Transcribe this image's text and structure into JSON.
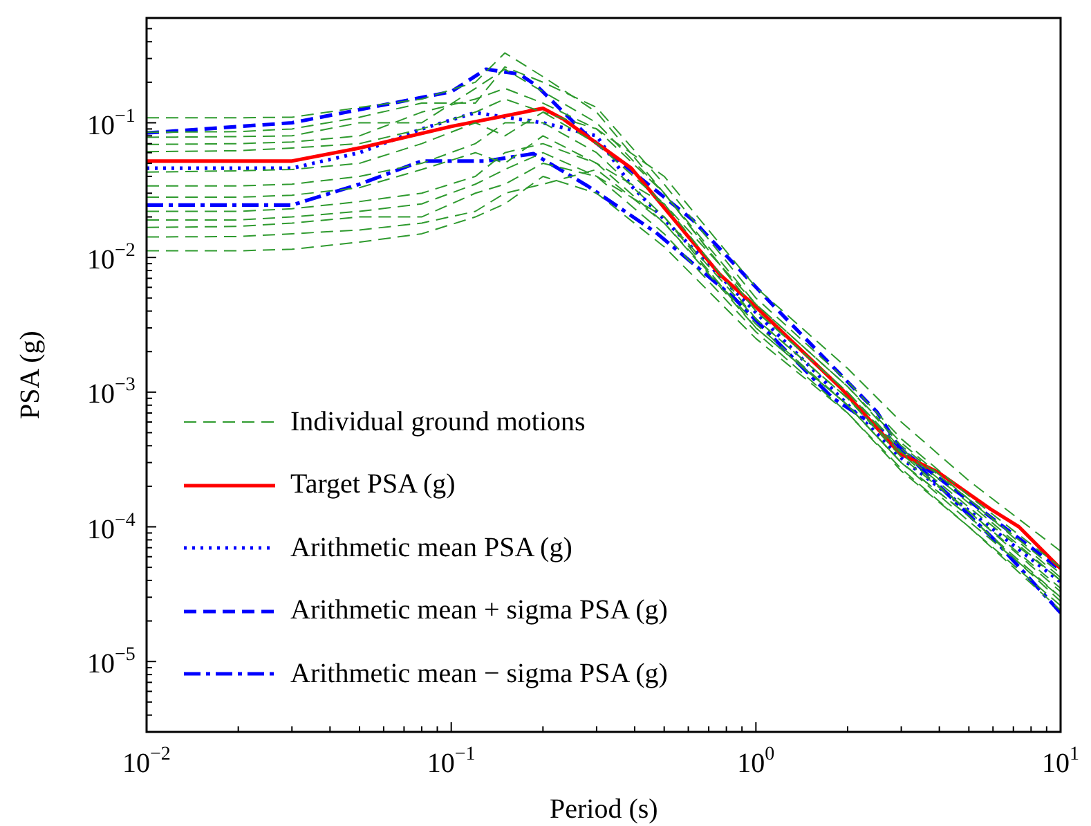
{
  "chart_data": {
    "type": "line",
    "xlabel": "Period (s)",
    "ylabel": "PSA (g)",
    "log": "xy",
    "grid": false,
    "legend": "bottom left",
    "marker": "none",
    "x": [
      0.01,
      0.02,
      0.03,
      0.05,
      0.08,
      0.12,
      0.15,
      0.2,
      0.3,
      0.5,
      1,
      2,
      3,
      5,
      10
    ],
    "xlim": [
      0.01,
      10
    ],
    "ylim": [
      3e-06,
      0.6
    ],
    "xticks": [
      {
        "value": 0.01,
        "label": "10$^{−2}$"
      },
      {
        "value": 0.02,
        "label": null
      },
      {
        "value": 0.03,
        "label": null
      },
      {
        "value": 0.04,
        "label": null
      },
      {
        "value": 0.05,
        "label": null
      },
      {
        "value": 0.06,
        "label": null
      },
      {
        "value": 0.07,
        "label": null
      },
      {
        "value": 0.08,
        "label": null
      },
      {
        "value": 0.09,
        "label": null
      },
      {
        "value": 0.1,
        "label": "10$^{−1}$"
      },
      {
        "value": 0.2,
        "label": null
      },
      {
        "value": 0.3,
        "label": null
      },
      {
        "value": 0.4,
        "label": null
      },
      {
        "value": 0.5,
        "label": null
      },
      {
        "value": 0.6,
        "label": null
      },
      {
        "value": 0.7,
        "label": null
      },
      {
        "value": 0.8,
        "label": null
      },
      {
        "value": 0.9,
        "label": null
      },
      {
        "value": 1,
        "label": "10$^{0}$"
      },
      {
        "value": 2,
        "label": null
      },
      {
        "value": 3,
        "label": null
      },
      {
        "value": 4,
        "label": null
      },
      {
        "value": 5,
        "label": null
      },
      {
        "value": 6,
        "label": null
      },
      {
        "value": 7,
        "label": null
      },
      {
        "value": 8,
        "label": null
      },
      {
        "value": 9,
        "label": null
      },
      {
        "value": 10,
        "label": "10$^{1}$"
      }
    ],
    "yticks": [
      {
        "value": 4e-06,
        "label": null
      },
      {
        "value": 5e-06,
        "label": null
      },
      {
        "value": 6e-06,
        "label": null
      },
      {
        "value": 7e-06,
        "label": null
      },
      {
        "value": 8e-06,
        "label": null
      },
      {
        "value": 9e-06,
        "label": null
      },
      {
        "value": 1e-05,
        "label": "10$^{−5}$"
      },
      {
        "value": 2e-05,
        "label": null
      },
      {
        "value": 3e-05,
        "label": null
      },
      {
        "value": 4e-05,
        "label": null
      },
      {
        "value": 5e-05,
        "label": null
      },
      {
        "value": 6e-05,
        "label": null
      },
      {
        "value": 7e-05,
        "label": null
      },
      {
        "value": 8e-05,
        "label": null
      },
      {
        "value": 9e-05,
        "label": null
      },
      {
        "value": 0.0001,
        "label": "10$^{−4}$"
      },
      {
        "value": 0.0002,
        "label": null
      },
      {
        "value": 0.0003,
        "label": null
      },
      {
        "value": 0.0004,
        "label": null
      },
      {
        "value": 0.0005,
        "label": null
      },
      {
        "value": 0.0006,
        "label": null
      },
      {
        "value": 0.0007,
        "label": null
      },
      {
        "value": 0.0008,
        "label": null
      },
      {
        "value": 0.0009,
        "label": null
      },
      {
        "value": 0.001,
        "label": "10$^{−3}$"
      },
      {
        "value": 0.002,
        "label": null
      },
      {
        "value": 0.003,
        "label": null
      },
      {
        "value": 0.004,
        "label": null
      },
      {
        "value": 0.005,
        "label": null
      },
      {
        "value": 0.006,
        "label": null
      },
      {
        "value": 0.007,
        "label": null
      },
      {
        "value": 0.008,
        "label": null
      },
      {
        "value": 0.009,
        "label": null
      },
      {
        "value": 0.01,
        "label": "10$^{−2}$"
      },
      {
        "value": 0.02,
        "label": null
      },
      {
        "value": 0.03,
        "label": null
      },
      {
        "value": 0.04,
        "label": null
      },
      {
        "value": 0.05,
        "label": null
      },
      {
        "value": 0.06,
        "label": null
      },
      {
        "value": 0.07,
        "label": null
      },
      {
        "value": 0.08,
        "label": null
      },
      {
        "value": 0.09,
        "label": null
      },
      {
        "value": 0.1,
        "label": "10$^{−1}$"
      },
      {
        "value": 0.2,
        "label": null
      },
      {
        "value": 0.3,
        "label": null
      },
      {
        "value": 0.4,
        "label": null
      },
      {
        "value": 0.5,
        "label": null
      }
    ],
    "series": [
      {
        "name": "Individual ground motions",
        "color": "#2e9a2e",
        "line_style": "dashed",
        "values": [
          0.109,
          0.109,
          0.11,
          0.13,
          0.15,
          0.2,
          0.33,
          0.22,
          0.12,
          0.03,
          0.0045,
          0.0011,
          0.0004,
          0.00016,
          4.5e-05
        ]
      },
      {
        "color": "#2e9a2e",
        "line_style": "dashed",
        "values": [
          0.085,
          0.086,
          0.09,
          0.11,
          0.14,
          0.14,
          0.26,
          0.2,
          0.13,
          0.035,
          0.005,
          0.0012,
          0.00045,
          0.00017,
          5e-05
        ]
      },
      {
        "color": "#2e9a2e",
        "line_style": "dashed",
        "values": [
          0.078,
          0.079,
          0.08,
          0.1,
          0.1,
          0.18,
          0.25,
          0.17,
          0.1,
          0.03,
          0.004,
          0.001,
          0.00038,
          0.00015,
          4e-05
        ]
      },
      {
        "color": "#2e9a2e",
        "line_style": "dashed",
        "values": [
          0.069,
          0.07,
          0.072,
          0.08,
          0.12,
          0.15,
          0.18,
          0.14,
          0.09,
          0.04,
          0.006,
          0.0015,
          0.0006,
          0.00022,
          6.6e-05
        ]
      },
      {
        "color": "#2e9a2e",
        "line_style": "dashed",
        "values": [
          0.061,
          0.062,
          0.065,
          0.07,
          0.09,
          0.12,
          0.15,
          0.12,
          0.07,
          0.025,
          0.0035,
          0.0009,
          0.00035,
          0.00013,
          3.5e-05
        ]
      },
      {
        "color": "#2e9a2e",
        "line_style": "dashed",
        "values": [
          0.043,
          0.044,
          0.045,
          0.05,
          0.07,
          0.1,
          0.08,
          0.12,
          0.09,
          0.03,
          0.004,
          0.001,
          0.00036,
          0.00014,
          4e-05
        ]
      },
      {
        "color": "#2e9a2e",
        "line_style": "dashed",
        "values": [
          0.034,
          0.034,
          0.035,
          0.04,
          0.05,
          0.07,
          0.1,
          0.1,
          0.06,
          0.02,
          0.003,
          0.0008,
          0.0003,
          0.00012,
          3e-05
        ]
      },
      {
        "color": "#2e9a2e",
        "line_style": "dashed",
        "values": [
          0.028,
          0.028,
          0.029,
          0.033,
          0.045,
          0.06,
          0.05,
          0.08,
          0.05,
          0.025,
          0.0045,
          0.0011,
          0.00042,
          0.00016,
          4.2e-05
        ]
      },
      {
        "color": "#2e9a2e",
        "line_style": "dashed",
        "values": [
          0.022,
          0.022,
          0.023,
          0.026,
          0.03,
          0.04,
          0.06,
          0.07,
          0.05,
          0.018,
          0.003,
          0.0008,
          0.0003,
          0.00011,
          3e-05
        ]
      },
      {
        "color": "#2e9a2e",
        "line_style": "dashed",
        "values": [
          0.019,
          0.019,
          0.02,
          0.022,
          0.025,
          0.035,
          0.045,
          0.06,
          0.04,
          0.02,
          0.0035,
          0.0009,
          0.00033,
          0.00013,
          3.3e-05
        ]
      },
      {
        "color": "#2e9a2e",
        "line_style": "dashed",
        "values": [
          0.0167,
          0.017,
          0.018,
          0.02,
          0.02,
          0.03,
          0.035,
          0.05,
          0.04,
          0.015,
          0.0028,
          0.0007,
          0.00027,
          0.0001,
          2.6e-05
        ]
      },
      {
        "color": "#2e9a2e",
        "line_style": "dashed",
        "values": [
          0.0142,
          0.0143,
          0.015,
          0.016,
          0.018,
          0.022,
          0.03,
          0.035,
          0.045,
          0.018,
          0.0032,
          0.0008,
          0.0003,
          0.00012,
          2.8e-05
        ]
      },
      {
        "color": "#2e9a2e",
        "line_style": "dashed",
        "values": [
          0.0112,
          0.0112,
          0.0115,
          0.013,
          0.015,
          0.02,
          0.025,
          0.04,
          0.03,
          0.012,
          0.0025,
          0.0007,
          0.00026,
          0.0001,
          2.4e-05
        ]
      },
      {
        "name": "Target PSA (g)",
        "color": "#ff0000",
        "line_style": "solid",
        "x": [
          0.01,
          0.03,
          0.05,
          0.1,
          0.2,
          0.234,
          0.39,
          0.76,
          1,
          1.91,
          2.97,
          3.93,
          5.9,
          7.3,
          10
        ],
        "values": [
          0.052,
          0.052,
          0.065,
          0.094,
          0.128,
          0.106,
          0.046,
          0.0075,
          0.0043,
          0.00106,
          0.00035,
          0.000257,
          0.000135,
          0.0001,
          4.9e-05
        ]
      },
      {
        "name": "Arithmetic mean PSA (g)",
        "color": "#0000ff",
        "line_style": "dotted",
        "x": [
          0.01,
          0.03,
          0.05,
          0.08,
          0.12,
          0.2,
          0.3,
          0.39,
          1,
          2.97,
          10
        ],
        "values": [
          0.046,
          0.046,
          0.06,
          0.09,
          0.119,
          0.1,
          0.08,
          0.034,
          0.0039,
          0.00033,
          3.9e-05
        ]
      },
      {
        "name": "Arithmetic mean + sigma PSA (g)",
        "color": "#0000ff",
        "line_style": "dashed",
        "x": [
          0.01,
          0.03,
          0.1,
          0.13,
          0.167,
          0.19,
          0.28,
          0.62,
          1.14,
          2.5,
          2.97,
          10
        ],
        "values": [
          0.084,
          0.1,
          0.17,
          0.25,
          0.23,
          0.19,
          0.08,
          0.019,
          0.0044,
          0.00071,
          0.00038,
          4.8e-05
        ]
      },
      {
        "name": "Arithmetic mean − sigma PSA (g)",
        "color": "#0000ff",
        "line_style": "dashdot",
        "x": [
          0.01,
          0.03,
          0.05,
          0.08,
          0.13,
          0.186,
          0.28,
          0.47,
          0.84,
          1.78,
          2.6,
          6.1,
          10
        ],
        "values": [
          0.0245,
          0.0245,
          0.035,
          0.052,
          0.052,
          0.059,
          0.034,
          0.0153,
          0.0051,
          0.00091,
          0.00052,
          7.9e-05,
          2.3e-05
        ]
      }
    ]
  }
}
